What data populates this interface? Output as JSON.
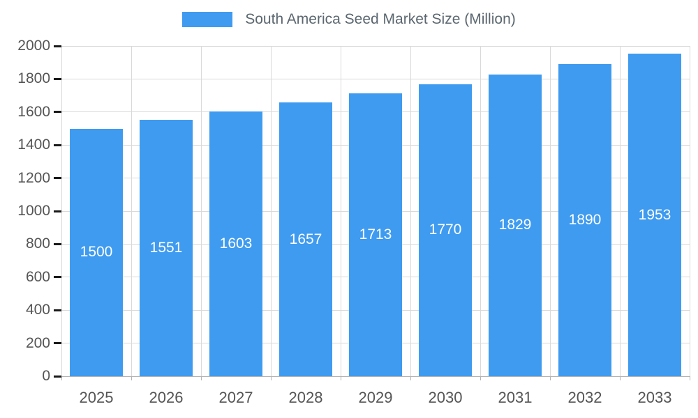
{
  "chart_data": {
    "type": "bar",
    "title": "South America Seed Market Size (Million)",
    "categories": [
      "2025",
      "2026",
      "2027",
      "2028",
      "2029",
      "2030",
      "2031",
      "2032",
      "2033"
    ],
    "values": [
      1500,
      1551,
      1603,
      1657,
      1713,
      1770,
      1829,
      1890,
      1953
    ],
    "xlabel": "",
    "ylabel": "",
    "ylim": [
      0,
      2000
    ],
    "yticks": [
      0,
      200,
      400,
      600,
      800,
      1000,
      1200,
      1400,
      1600,
      1800,
      2000
    ],
    "grid": true,
    "legend_position": "top",
    "bar_color": "#3e9bf0",
    "value_label_color": "#ffffff",
    "axis_label_color": "#555555",
    "legend_text_color": "#5b6770",
    "gridline_color": "#d9d9d9",
    "tick_color": "#1a1a1a"
  }
}
